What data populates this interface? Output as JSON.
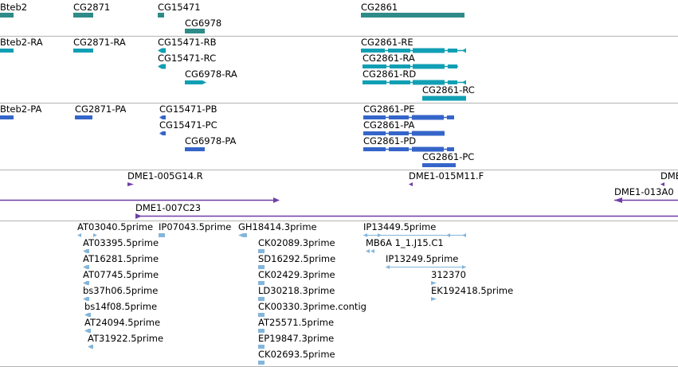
{
  "colors": {
    "gene": "#2e8b88",
    "mrna": "#119fb4",
    "protein": "#3565c9",
    "clone": "#6f3fa6",
    "est": "#84b5da",
    "divider": "#b4b4b4"
  },
  "tracks": {
    "genes": {
      "labels": [
        "Bteb2",
        "CG2871",
        "CG15471",
        "CG6978",
        "CG2861"
      ]
    },
    "mrna": {
      "labels": [
        "Bteb2-RA",
        "CG2871-RA",
        "CG15471-RB",
        "CG15471-RC",
        "CG6978-RA",
        "CG2861-RE",
        "CG2861-RA",
        "CG2861-RD",
        "CG2861-RC"
      ]
    },
    "protein": {
      "labels": [
        "Bteb2-PA",
        "CG2871-PA",
        "CG15471-PB",
        "CG15471-PC",
        "CG6978-PA",
        "CG2861-PE",
        "CG2861-PA",
        "CG2861-PD",
        "CG2861-PC"
      ]
    },
    "clones": {
      "labels": [
        "DME1-005G14.R",
        "DME1-015M11.F",
        "DME",
        "DME1-013A0",
        "DME1-007C23"
      ]
    },
    "ests": {
      "labels": [
        "AT03040.5prime",
        "IP07043.5prime",
        "GH18414.3prime",
        "IP13449.5prime",
        "AT03395.5prime",
        "CK02089.3prime",
        "MB6A 1_1.J15.C1",
        "AT16281.5prime",
        "SD16292.5prime",
        "IP13249.5prime",
        "AT07745.5prime",
        "CK02429.3prime",
        "312370",
        "bs37h06.5prime",
        "LD30218.3prime",
        "EK192418.5prime",
        "bs14f08.5prime",
        "CK00330.3prime.contig",
        "AT24094.5prime",
        "AT25571.5prime",
        "AT31922.5prime",
        "EP19847.3prime",
        "CK02693.5prime"
      ]
    }
  }
}
